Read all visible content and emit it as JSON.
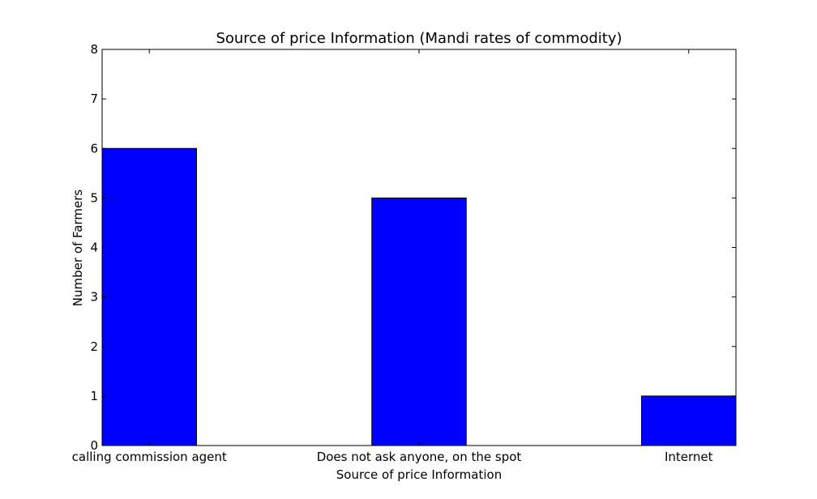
{
  "chart_data": {
    "type": "bar",
    "title": "Source of price Information (Mandi rates of commodity)",
    "xlabel": "Source of price Information",
    "ylabel": "Number of Farmers",
    "categories": [
      "calling commission agent",
      "Does not ask anyone, on the spot",
      "Internet"
    ],
    "values": [
      6,
      5,
      1
    ],
    "ylim": [
      0,
      8
    ],
    "yticks": [
      0,
      1,
      2,
      3,
      4,
      5,
      6,
      7,
      8
    ],
    "grid": false,
    "legend": "none",
    "bar_color": "#0000ff",
    "edge_color": "#000000"
  }
}
